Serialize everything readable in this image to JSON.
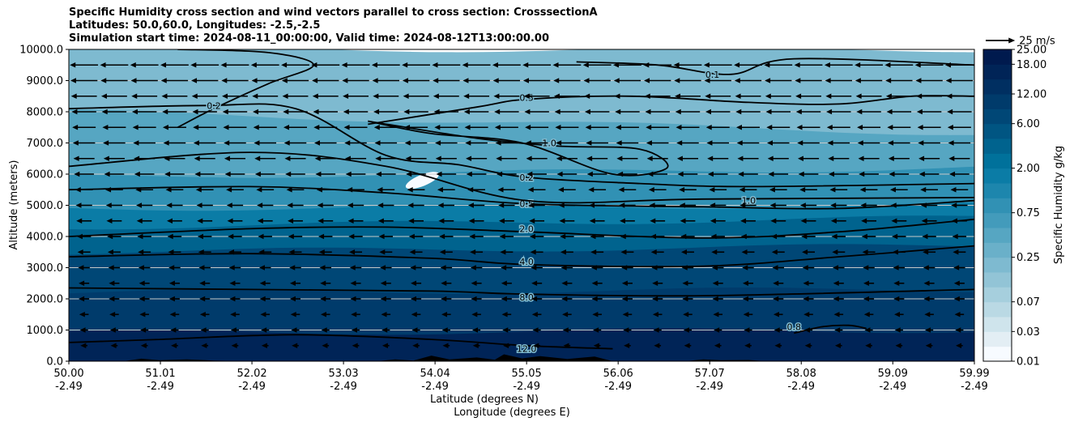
{
  "colors": {
    "palette": [
      "#f7fbff",
      "#e3eef4",
      "#cfe4ec",
      "#bad9e4",
      "#a6cfdd",
      "#92c4d6",
      "#7ebad0",
      "#6ab0c9",
      "#56a6c2",
      "#439bbb",
      "#3191b4",
      "#1d86ad",
      "#0b7ca6",
      "#00719b",
      "#00638e",
      "#005582",
      "#004776",
      "#003b6b",
      "#002f61",
      "#002457",
      "#001a4e"
    ],
    "terrain": "#000000",
    "grid": "#c8c8c8"
  },
  "chart_data": {
    "type": "heatmap",
    "title_lines": [
      "Specific Humidity cross section and wind vectors parallel to cross section: CrosssectionA",
      "Latitudes: 50.0,60.0, Longitudes: -2.5,-2.5",
      "Simulation start time: 2024-08-11_00:00:00, Valid time: 2024-08-12T13:00:00.00"
    ],
    "ylabel": "Altitude (meters)",
    "xlabel_lines": [
      "Latitude (degrees N)",
      "Longitude (degrees E)"
    ],
    "ylim": [
      0,
      10000
    ],
    "xlim": [
      50.0,
      59.99
    ],
    "yticks": [
      {
        "value": 0,
        "label": "0.0"
      },
      {
        "value": 1000,
        "label": "1000.0"
      },
      {
        "value": 2000,
        "label": "2000.0"
      },
      {
        "value": 3000,
        "label": "3000.0"
      },
      {
        "value": 4000,
        "label": "4000.0"
      },
      {
        "value": 5000,
        "label": "5000.0"
      },
      {
        "value": 6000,
        "label": "6000.0"
      },
      {
        "value": 7000,
        "label": "7000.0"
      },
      {
        "value": 8000,
        "label": "8000.0"
      },
      {
        "value": 9000,
        "label": "9000.0"
      },
      {
        "value": 10000,
        "label": "10000.0"
      }
    ],
    "xticks": [
      {
        "value": 50.0,
        "lat": "50.00",
        "lon": "-2.49"
      },
      {
        "value": 51.01,
        "lat": "51.01",
        "lon": "-2.49"
      },
      {
        "value": 52.02,
        "lat": "52.02",
        "lon": "-2.49"
      },
      {
        "value": 53.03,
        "lat": "53.03",
        "lon": "-2.49"
      },
      {
        "value": 54.04,
        "lat": "54.04",
        "lon": "-2.49"
      },
      {
        "value": 55.05,
        "lat": "55.05",
        "lon": "-2.49"
      },
      {
        "value": 56.06,
        "lat": "56.06",
        "lon": "-2.49"
      },
      {
        "value": 57.07,
        "lat": "57.07",
        "lon": "-2.49"
      },
      {
        "value": 58.08,
        "lat": "58.08",
        "lon": "-2.49"
      },
      {
        "value": 59.09,
        "lat": "59.09",
        "lon": "-2.49"
      },
      {
        "value": 59.99,
        "lat": "59.99",
        "lon": "-2.49"
      }
    ],
    "grid": "horizontal",
    "colorbar": {
      "label": "Specific Humidity g/kg",
      "levels": [
        0.01,
        0.02,
        0.03,
        0.05,
        0.07,
        0.1,
        0.15,
        0.25,
        0.35,
        0.5,
        0.75,
        1.0,
        1.5,
        2.0,
        3.0,
        4.0,
        6.0,
        8.0,
        12.0,
        15.0,
        18.0,
        25.0
      ],
      "tick_labels": [
        {
          "level_index": 0,
          "label": "0.01"
        },
        {
          "level_index": 2,
          "label": "0.03"
        },
        {
          "level_index": 4,
          "label": "0.07"
        },
        {
          "level_index": 7,
          "label": "0.25"
        },
        {
          "level_index": 10,
          "label": "0.75"
        },
        {
          "level_index": 13,
          "label": "2.00"
        },
        {
          "level_index": 16,
          "label": "6.00"
        },
        {
          "level_index": 18,
          "label": "12.00"
        },
        {
          "level_index": 20,
          "label": "18.00"
        },
        {
          "level_index": 21,
          "label": "25.00"
        }
      ]
    },
    "quiver_key": {
      "label": "25 m/s",
      "speed": 25
    },
    "wind": {
      "direction": "toward lower latitude",
      "rows": [
        {
          "altitude": 500,
          "speed": 6
        },
        {
          "altitude": 1000,
          "speed": 7
        },
        {
          "altitude": 1500,
          "speed": 8
        },
        {
          "altitude": 2000,
          "speed": 9
        },
        {
          "altitude": 2500,
          "speed": 9
        },
        {
          "altitude": 3000,
          "speed": 10
        },
        {
          "altitude": 3500,
          "speed": 11
        },
        {
          "altitude": 4000,
          "speed": 12
        },
        {
          "altitude": 4500,
          "speed": 13
        },
        {
          "altitude": 5000,
          "speed": 14
        },
        {
          "altitude": 5500,
          "speed": 15
        },
        {
          "altitude": 6000,
          "speed": 17
        },
        {
          "altitude": 6500,
          "speed": 18
        },
        {
          "altitude": 7000,
          "speed": 19
        },
        {
          "altitude": 7500,
          "speed": 20
        },
        {
          "altitude": 8000,
          "speed": 21
        },
        {
          "altitude": 8500,
          "speed": 22
        },
        {
          "altitude": 9000,
          "speed": 23
        },
        {
          "altitude": 9500,
          "speed": 24
        }
      ]
    },
    "moist_layers": [
      {
        "top_start": 900,
        "top_end": 1000,
        "level_index": 19
      },
      {
        "top_start": 2200,
        "top_end": 2300,
        "level_index": 17
      },
      {
        "top_start": 3500,
        "top_end": 3700,
        "level_index": 16
      },
      {
        "top_start": 4300,
        "top_end": 4600,
        "level_index": 14
      },
      {
        "top_start": 4900,
        "top_end": 5000,
        "level_index": 12
      },
      {
        "top_start": 5900,
        "top_end": 6200,
        "level_index": 10
      },
      {
        "top_start": 8000,
        "top_end": 7300,
        "level_index": 8
      },
      {
        "top_start": 10000,
        "top_end": 10000,
        "level_index": 6
      }
    ],
    "contours": [
      {
        "label": "8.0",
        "points": [
          [
            50.0,
            2350
          ],
          [
            52.0,
            2300
          ],
          [
            54.0,
            2250
          ],
          [
            55.05,
            2150
          ],
          [
            57.0,
            2100
          ],
          [
            59.99,
            2300
          ]
        ],
        "label_at": [
          55.05,
          2050
        ]
      },
      {
        "label": "4.0",
        "points": [
          [
            50.0,
            3350
          ],
          [
            52.0,
            3450
          ],
          [
            54.0,
            3300
          ],
          [
            55.05,
            3100
          ],
          [
            57.0,
            3050
          ],
          [
            58.5,
            3350
          ],
          [
            59.99,
            3700
          ]
        ],
        "label_at": [
          55.05,
          3200
        ]
      },
      {
        "label": "2.0",
        "points": [
          [
            50.0,
            4000
          ],
          [
            52.0,
            4250
          ],
          [
            53.5,
            4300
          ],
          [
            55.05,
            4150
          ],
          [
            57.0,
            3950
          ],
          [
            58.5,
            4150
          ],
          [
            59.99,
            4550
          ]
        ],
        "label_at": [
          55.05,
          4250
        ]
      },
      {
        "label": "0.5",
        "points": [
          [
            50.0,
            5500
          ],
          [
            52.0,
            5600
          ],
          [
            53.5,
            5400
          ],
          [
            55.05,
            5050
          ],
          [
            57.0,
            4950
          ],
          [
            58.5,
            4900
          ],
          [
            59.99,
            5150
          ]
        ],
        "label_at": [
          55.05,
          5050
        ]
      },
      {
        "label": "1.0",
        "points": [
          [
            50.0,
            6250
          ],
          [
            52.0,
            6700
          ],
          [
            53.5,
            6250
          ],
          [
            55.05,
            5150
          ],
          [
            57.0,
            5200
          ],
          [
            59.99,
            5250
          ]
        ],
        "label_at": [
          57.5,
          5150
        ]
      },
      {
        "label": "0.2",
        "points": [
          [
            50.0,
            8100
          ],
          [
            51.5,
            8200
          ],
          [
            52.5,
            8100
          ],
          [
            53.5,
            6600
          ],
          [
            54.3,
            6300
          ],
          [
            55.05,
            5900
          ],
          [
            56.3,
            5700
          ],
          [
            57.5,
            5600
          ],
          [
            59.99,
            5700
          ]
        ],
        "label_at": [
          55.05,
          5900
        ]
      },
      {
        "label": "0.5",
        "points": [
          [
            53.3,
            7600
          ],
          [
            54.5,
            8150
          ],
          [
            55.05,
            8400
          ],
          [
            56.2,
            8500
          ],
          [
            57.5,
            8300
          ],
          [
            58.5,
            8250
          ],
          [
            59.3,
            8500
          ],
          [
            59.99,
            8500
          ]
        ],
        "label_at": [
          55.05,
          8450
        ]
      },
      {
        "label": "1.0",
        "points": [
          [
            53.3,
            7700
          ],
          [
            54.5,
            7150
          ],
          [
            55.4,
            6900
          ],
          [
            56.3,
            6800
          ],
          [
            56.6,
            6200
          ],
          [
            56.0,
            6000
          ],
          [
            55.0,
            7000
          ],
          [
            54.0,
            7300
          ],
          [
            53.3,
            7700
          ]
        ],
        "label_at": [
          55.3,
          7000
        ]
      },
      {
        "label": "0.1",
        "points": [
          [
            55.6,
            9600
          ],
          [
            56.5,
            9500
          ],
          [
            57.3,
            9200
          ],
          [
            58.0,
            9700
          ],
          [
            59.99,
            9500
          ]
        ],
        "label_at": [
          57.1,
          9200
        ]
      },
      {
        "label": "0.2",
        "points": [
          [
            51.2,
            10000
          ],
          [
            52.2,
            9900
          ],
          [
            52.7,
            9500
          ],
          [
            52.2,
            8900
          ],
          [
            51.6,
            8100
          ],
          [
            51.2,
            7500
          ]
        ],
        "label_at": [
          51.6,
          8200
        ]
      },
      {
        "label": "12.0",
        "points": [
          [
            50.0,
            600
          ],
          [
            51.0,
            700
          ],
          [
            52.5,
            850
          ],
          [
            54.0,
            700
          ],
          [
            55.05,
            500
          ],
          [
            56.0,
            400
          ]
        ],
        "label_at": [
          55.05,
          400
        ]
      },
      {
        "label": "0.8",
        "points": [
          [
            58.0,
            900
          ],
          [
            58.3,
            1100
          ],
          [
            58.6,
            1150
          ],
          [
            58.8,
            1050
          ]
        ],
        "label_at": [
          58.0,
          1100
        ]
      }
    ],
    "terrain_profile": [
      [
        50.0,
        0
      ],
      [
        50.6,
        0
      ],
      [
        50.8,
        80
      ],
      [
        51.0,
        30
      ],
      [
        51.3,
        60
      ],
      [
        51.6,
        20
      ],
      [
        52.0,
        0
      ],
      [
        53.4,
        0
      ],
      [
        53.6,
        60
      ],
      [
        53.8,
        20
      ],
      [
        54.0,
        180
      ],
      [
        54.2,
        60
      ],
      [
        54.5,
        120
      ],
      [
        54.7,
        50
      ],
      [
        54.8,
        220
      ],
      [
        55.0,
        90
      ],
      [
        55.2,
        160
      ],
      [
        55.5,
        70
      ],
      [
        55.8,
        150
      ],
      [
        56.0,
        0
      ],
      [
        56.8,
        0
      ],
      [
        57.0,
        60
      ],
      [
        57.2,
        30
      ],
      [
        57.5,
        40
      ],
      [
        57.7,
        0
      ],
      [
        59.99,
        0
      ]
    ],
    "dry_pocket_center": [
      53.9,
      5800
    ]
  }
}
